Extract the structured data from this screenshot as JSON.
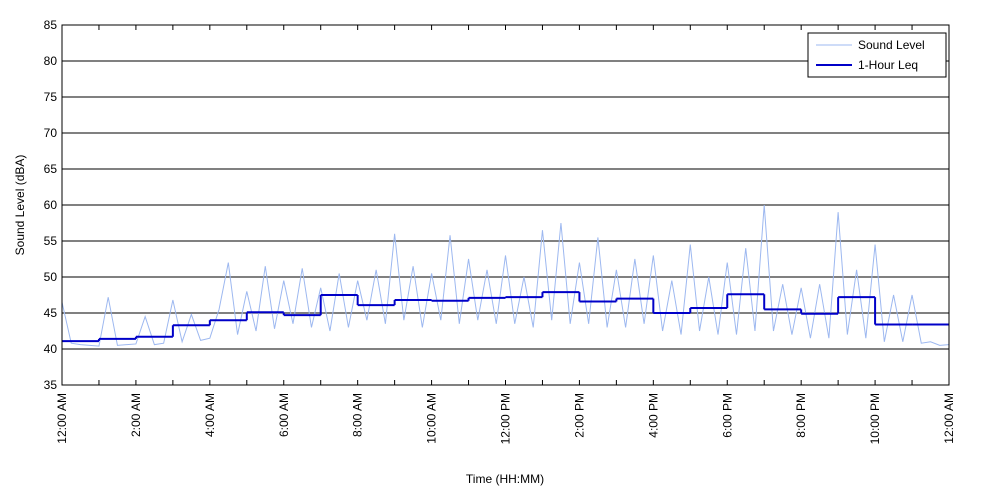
{
  "chart_data": {
    "type": "line",
    "xlabel": "Time (HH:MM)",
    "ylabel": "Sound Level (dBA)",
    "xlim": [
      0,
      24
    ],
    "ylim": [
      35,
      85
    ],
    "yticks": [
      35,
      40,
      45,
      50,
      55,
      60,
      65,
      70,
      75,
      80,
      85
    ],
    "xticks": [
      {
        "value": 0,
        "label": "12:00 AM"
      },
      {
        "value": 2,
        "label": "2:00 AM"
      },
      {
        "value": 4,
        "label": "4:00 AM"
      },
      {
        "value": 6,
        "label": "6:00 AM"
      },
      {
        "value": 8,
        "label": "8:00 AM"
      },
      {
        "value": 10,
        "label": "10:00 AM"
      },
      {
        "value": 12,
        "label": "12:00 PM"
      },
      {
        "value": 14,
        "label": "2:00 PM"
      },
      {
        "value": 16,
        "label": "4:00 PM"
      },
      {
        "value": 18,
        "label": "6:00 PM"
      },
      {
        "value": 20,
        "label": "8:00 PM"
      },
      {
        "value": 22,
        "label": "10:00 PM"
      },
      {
        "value": 24,
        "label": "12:00 AM"
      }
    ],
    "xminor_ticks": [
      1,
      3,
      5,
      7,
      9,
      11,
      13,
      15,
      17,
      19,
      21,
      23
    ],
    "grid": true,
    "legend": "upper right",
    "series": [
      {
        "name": "Sound Level",
        "color": "#9db8f0",
        "style": "line",
        "x": [
          0,
          0.25,
          0.5,
          0.75,
          1,
          1.25,
          1.5,
          1.75,
          2,
          2.25,
          2.5,
          2.75,
          3,
          3.25,
          3.5,
          3.75,
          4,
          4.25,
          4.5,
          4.75,
          5,
          5.25,
          5.5,
          5.75,
          6,
          6.25,
          6.5,
          6.75,
          7,
          7.25,
          7.5,
          7.75,
          8,
          8.25,
          8.5,
          8.75,
          9,
          9.25,
          9.5,
          9.75,
          10,
          10.25,
          10.5,
          10.75,
          11,
          11.25,
          11.5,
          11.75,
          12,
          12.25,
          12.5,
          12.75,
          13,
          13.25,
          13.5,
          13.75,
          14,
          14.25,
          14.5,
          14.75,
          15,
          15.25,
          15.5,
          15.75,
          16,
          16.25,
          16.5,
          16.75,
          17,
          17.25,
          17.5,
          17.75,
          18,
          18.25,
          18.5,
          18.75,
          19,
          19.25,
          19.5,
          19.75,
          20,
          20.25,
          20.5,
          20.75,
          21,
          21.25,
          21.5,
          21.75,
          22,
          22.25,
          22.5,
          22.75,
          23,
          23.25,
          23.5,
          23.75,
          24
        ],
        "values": [
          46.5,
          40.8,
          40.6,
          40.5,
          40.4,
          47.2,
          40.5,
          40.6,
          40.7,
          44.5,
          40.6,
          40.8,
          46.8,
          41.0,
          44.8,
          41.2,
          41.5,
          45.5,
          52.0,
          42.0,
          48.0,
          42.5,
          51.5,
          42.8,
          49.5,
          43.5,
          51.2,
          43.0,
          48.5,
          42.5,
          50.5,
          43.0,
          49.5,
          44.0,
          51.0,
          43.5,
          56.0,
          44.0,
          51.5,
          43.0,
          50.5,
          44.0,
          55.8,
          43.5,
          52.5,
          44.0,
          51.0,
          43.5,
          53.0,
          43.5,
          50.0,
          43.0,
          56.5,
          44.0,
          57.5,
          43.5,
          52.0,
          43.5,
          55.5,
          43.0,
          51.0,
          43.0,
          52.5,
          43.5,
          53.0,
          42.5,
          49.5,
          42.0,
          54.5,
          42.5,
          50.0,
          42.0,
          52.0,
          42.0,
          54.0,
          42.5,
          60.0,
          42.5,
          49.0,
          42.0,
          48.5,
          41.5,
          49.0,
          41.5,
          59.0,
          42.0,
          51.0,
          41.5,
          54.5,
          41.0,
          47.5,
          41.0,
          47.5,
          40.8,
          41.0,
          40.5,
          40.6
        ]
      },
      {
        "name": "1-Hour Leq",
        "color": "#0000c8",
        "style": "step",
        "x": [
          0,
          1,
          2,
          3,
          4,
          5,
          6,
          7,
          8,
          9,
          10,
          11,
          12,
          13,
          14,
          15,
          16,
          17,
          18,
          19,
          20,
          21,
          22,
          23
        ],
        "values": [
          41.1,
          41.4,
          41.7,
          43.3,
          44.0,
          45.1,
          44.7,
          47.5,
          46.1,
          46.8,
          46.7,
          47.1,
          47.2,
          47.9,
          46.6,
          47.0,
          45.0,
          45.7,
          47.6,
          45.5,
          44.9,
          47.2,
          43.4,
          43.4
        ]
      }
    ]
  }
}
